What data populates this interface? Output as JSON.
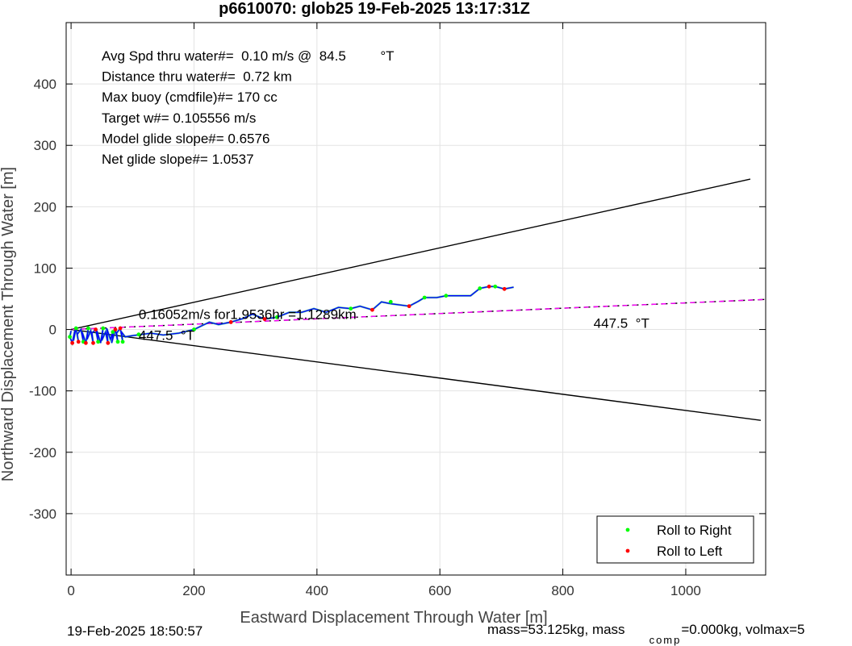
{
  "chart_data": {
    "type": "scatter",
    "title": "p6610070: glob25 19-Feb-2025 13:17:31Z",
    "xlabel": "Eastward Displacement Through Water [m]",
    "ylabel": "Northward Displacement Through Water [m]",
    "xlim": [
      -8,
      1130
    ],
    "ylim": [
      -400,
      500
    ],
    "xticks": [
      0,
      200,
      400,
      600,
      800,
      1000
    ],
    "yticks": [
      -300,
      -200,
      -100,
      0,
      100,
      200,
      300,
      400
    ],
    "grid": true,
    "info_lines": [
      "Avg Spd thru water#=  0.10 m/s @  84.5         °T",
      "Distance thru water#=  0.72 km",
      "Max buoy (cmdfile)#= 170 cc",
      "Target w#= 0.105556 m/s",
      "Model glide slope#= 0.6576",
      "Net glide slope#= 1.0537"
    ],
    "annotations": [
      {
        "text": "0.16052m/s for1.9536hr =1.1289km",
        "x": 110,
        "y": 17
      },
      {
        "text": "447.5  °T",
        "x": 110,
        "y": -17
      },
      {
        "text": "447.5  °T",
        "x": 850,
        "y": 3
      }
    ],
    "cone_lines": [
      {
        "name": "upper bound",
        "color": "#000000",
        "x": [
          0,
          1105
        ],
        "y": [
          0,
          245
        ]
      },
      {
        "name": "lower bound",
        "color": "#000000",
        "x": [
          0,
          1122
        ],
        "y": [
          0,
          -148
        ]
      }
    ],
    "heading_line": {
      "x": [
        0,
        1130
      ],
      "y": [
        0,
        49
      ],
      "color": "#ff00ff"
    },
    "track": {
      "color": "#0000ff",
      "x": [
        0,
        -2,
        2,
        6,
        4,
        8,
        12,
        10,
        16,
        20,
        18,
        24,
        28,
        26,
        32,
        36,
        34,
        40,
        44,
        42,
        48,
        52,
        50,
        56,
        60,
        58,
        64,
        68,
        66,
        72,
        76,
        74,
        80,
        84,
        82,
        88,
        100,
        115,
        130,
        150,
        175,
        200,
        225,
        240,
        260,
        280,
        295,
        315,
        335,
        355,
        375,
        395,
        415,
        435,
        455,
        470,
        490,
        505,
        520,
        535,
        550,
        565,
        575,
        595,
        610,
        630,
        650,
        665,
        680,
        690,
        705,
        720
      ],
      "y": [
        -2,
        -12,
        -22,
        -2,
        -18,
        2,
        -20,
        -8,
        0,
        -20,
        -4,
        -22,
        2,
        -16,
        -2,
        -22,
        -6,
        0,
        -20,
        -2,
        -22,
        2,
        -18,
        -4,
        -22,
        2,
        -16,
        -4,
        -22,
        0,
        -20,
        -6,
        2,
        -20,
        -4,
        -12,
        -10,
        -8,
        -6,
        -9,
        -6,
        0,
        12,
        8,
        12,
        18,
        25,
        17,
        20,
        28,
        28,
        34,
        28,
        36,
        34,
        38,
        32,
        45,
        42,
        40,
        38,
        46,
        52,
        52,
        55,
        55,
        55,
        67,
        70,
        70,
        66,
        69
      ]
    },
    "roll_right": {
      "name": "Roll to Right",
      "color": "#00ff00",
      "x": [
        -2,
        8,
        20,
        28,
        44,
        52,
        68,
        76,
        84,
        110,
        200,
        335,
        455,
        520,
        575,
        610,
        665,
        690
      ],
      "y": [
        -12,
        2,
        -20,
        2,
        -20,
        2,
        -4,
        -20,
        -20,
        -8,
        0,
        20,
        34,
        45,
        52,
        55,
        67,
        70
      ]
    },
    "roll_left": {
      "name": "Roll to Left",
      "color": "#ff0000",
      "x": [
        2,
        12,
        24,
        36,
        40,
        60,
        72,
        80,
        260,
        315,
        490,
        550,
        680,
        705
      ],
      "y": [
        -22,
        -20,
        -22,
        -22,
        0,
        -22,
        0,
        2,
        12,
        17,
        32,
        38,
        70,
        66
      ]
    },
    "legend": {
      "position": "bottom-right",
      "entries": [
        "Roll to Right",
        "Roll to Left"
      ]
    }
  },
  "footer": {
    "timestamp": "19-Feb-2025 18:50:57",
    "mass_text": "mass=53.125kg, mass",
    "comp_sub": "comp",
    "mass_tail": "=0.000kg, volmax=5"
  }
}
